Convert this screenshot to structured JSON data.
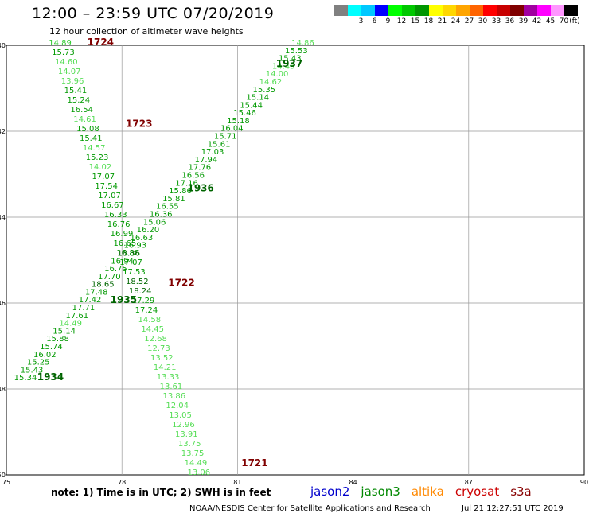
{
  "title": "12:00 – 23:59 UTC 07/20/2019",
  "subtitle": "12 hour collection of altimeter wave heights",
  "legend": {
    "unit": "(ft)",
    "bins": [
      {
        "label": "",
        "color": "#808080"
      },
      {
        "label": "3",
        "color": "#00ffff"
      },
      {
        "label": "6",
        "color": "#00c8ff"
      },
      {
        "label": "9",
        "color": "#0000ff"
      },
      {
        "label": "12",
        "color": "#00ff00"
      },
      {
        "label": "15",
        "color": "#00c800"
      },
      {
        "label": "18",
        "color": "#009600"
      },
      {
        "label": "21",
        "color": "#ffff00"
      },
      {
        "label": "24",
        "color": "#ffd700"
      },
      {
        "label": "27",
        "color": "#ffa500"
      },
      {
        "label": "30",
        "color": "#ff6400"
      },
      {
        "label": "33",
        "color": "#ff0000"
      },
      {
        "label": "36",
        "color": "#c80000"
      },
      {
        "label": "39",
        "color": "#800000"
      },
      {
        "label": "42",
        "color": "#a000a0"
      },
      {
        "label": "45",
        "color": "#ff00ff"
      },
      {
        "label": "70",
        "color": "#ff96ff"
      },
      {
        "label": "",
        "color": "#000000"
      }
    ]
  },
  "map": {
    "lon_range": [
      75,
      90
    ],
    "lat_range": [
      -50,
      -40
    ],
    "lon_ticks": [
      "75",
      "78",
      "81",
      "84",
      "87",
      "90"
    ],
    "lat_ticks": [
      "-40",
      "-42",
      "-44",
      "-46",
      "-48",
      "-50"
    ]
  },
  "passes": [
    {
      "time": "1721",
      "color": "#800000",
      "lon": 81.1,
      "lat": -49.8
    },
    {
      "time": "1722",
      "color": "#800000",
      "lon": 79.2,
      "lat": -45.6
    },
    {
      "time": "1723",
      "color": "#800000",
      "lon": 78.1,
      "lat": -41.9
    },
    {
      "time": "1724",
      "color": "#800000",
      "lon": 77.1,
      "lat": -40.0
    },
    {
      "time": "1934",
      "color": "#006400",
      "lon": 75.8,
      "lat": -47.8
    },
    {
      "time": "1935",
      "color": "#006400",
      "lon": 77.7,
      "lat": -46.0
    },
    {
      "time": "1936",
      "color": "#006400",
      "lon": 79.7,
      "lat": -43.4
    },
    {
      "time": "1937",
      "color": "#006400",
      "lon": 82.0,
      "lat": -40.5
    }
  ],
  "tracks": [
    {
      "name": "cryosat",
      "lon_start": 76.1,
      "lat_start": -40.0,
      "lon_end": 79.7,
      "lat_end": -50.0,
      "values": [
        "14.89",
        "15.73",
        "14.60",
        "14.07",
        "13.96",
        "15.41",
        "15.24",
        "16.54",
        "14.61",
        "15.08",
        "15.41",
        "14.57",
        "15.23",
        "14.02",
        "17.07",
        "17.54",
        "17.07",
        "16.67",
        "16.33",
        "16.76",
        "16.99",
        "16.65",
        "16.88",
        "17.07",
        "17.53",
        "18.52",
        "18.24",
        "17.29",
        "17.24",
        "14.58",
        "14.45",
        "12.68",
        "12.73",
        "13.52",
        "14.21",
        "13.33",
        "13.61",
        "13.86",
        "12.04",
        "13.05",
        "12.96",
        "13.91",
        "13.75",
        "13.75",
        "14.49",
        "13.06"
      ],
      "colors": [
        "#33cc33",
        "#009900",
        "#55dd55",
        "#55dd55",
        "#55dd55",
        "#009900",
        "#009900",
        "#009900",
        "#55dd55",
        "#009900",
        "#009900",
        "#55dd55",
        "#009900",
        "#55dd55",
        "#009900",
        "#009900",
        "#009900",
        "#009900",
        "#009900",
        "#009900",
        "#009900",
        "#009900",
        "#009900",
        "#009900",
        "#009900",
        "#006600",
        "#006600",
        "#009900",
        "#009900",
        "#55dd55",
        "#55dd55",
        "#55dd55",
        "#55dd55",
        "#55dd55",
        "#55dd55",
        "#55dd55",
        "#55dd55",
        "#55dd55",
        "#55dd55",
        "#55dd55",
        "#55dd55",
        "#55dd55",
        "#55dd55",
        "#55dd55",
        "#55dd55",
        "#55dd55"
      ]
    },
    {
      "name": "jason3",
      "lon_start": 75.2,
      "lat_start": -47.8,
      "lon_end": 82.4,
      "lat_end": -40.0,
      "values": [
        "15.34",
        "15.43",
        "15.25",
        "16.02",
        "15.74",
        "15.88",
        "15.14",
        "14.49",
        "17.61",
        "17.71",
        "17.42",
        "17.48",
        "18.65",
        "17.70",
        "16.75",
        "16.94",
        "18.36",
        "16.93",
        "16.63",
        "16.20",
        "15.06",
        "16.36",
        "16.55",
        "15.81",
        "15.86",
        "17.16",
        "16.56",
        "17.76",
        "17.94",
        "17.03",
        "15.61",
        "15.71",
        "16.04",
        "15.18",
        "15.46",
        "15.44",
        "15.14",
        "15.35",
        "14.62",
        "14.00",
        "14.45",
        "15.43",
        "15.53",
        "14.86"
      ],
      "colors": [
        "#009900",
        "#009900",
        "#009900",
        "#009900",
        "#009900",
        "#009900",
        "#009900",
        "#55dd55",
        "#009900",
        "#009900",
        "#009900",
        "#009900",
        "#006600",
        "#009900",
        "#009900",
        "#009900",
        "#006600",
        "#009900",
        "#009900",
        "#009900",
        "#009900",
        "#009900",
        "#009900",
        "#009900",
        "#009900",
        "#009900",
        "#009900",
        "#009900",
        "#009900",
        "#009900",
        "#009900",
        "#009900",
        "#009900",
        "#009900",
        "#009900",
        "#009900",
        "#009900",
        "#009900",
        "#55dd55",
        "#55dd55",
        "#55dd55",
        "#009900",
        "#009900",
        "#55dd55"
      ]
    }
  ],
  "note": "note:  1) Time is in UTC;  2) SWH is in feet",
  "satellites": [
    {
      "label": "jason2",
      "color": "#0000cc"
    },
    {
      "label": "jason3",
      "color": "#008800"
    },
    {
      "label": "altika",
      "color": "#ff8800"
    },
    {
      "label": "cryosat",
      "color": "#cc0000"
    },
    {
      "label": "s3a",
      "color": "#880000"
    }
  ],
  "credit": "NOAA/NESDIS Center for Satellite Applications and Research",
  "timestamp": "Jul 21 12:27:51 UTC 2019"
}
